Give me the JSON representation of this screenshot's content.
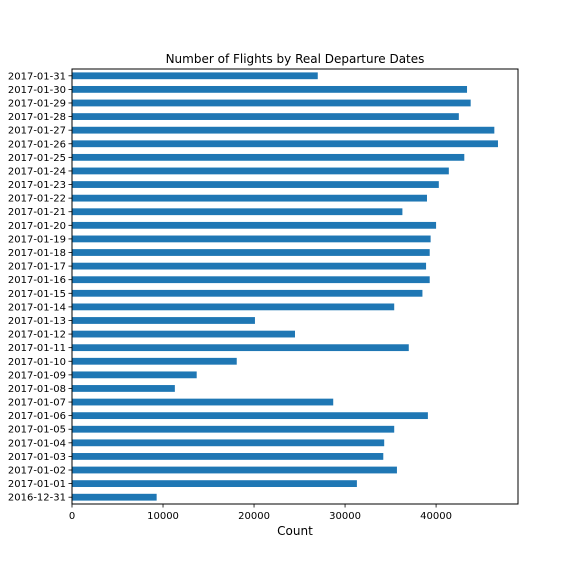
{
  "chart_data": {
    "type": "bar",
    "orientation": "horizontal",
    "title": "Number of Flights by Real Departure Dates",
    "xlabel": "Count",
    "ylabel": "",
    "xlim": [
      0,
      49000
    ],
    "xticks": [
      0,
      10000,
      20000,
      30000,
      40000
    ],
    "grid": false,
    "bar_color": "#1f77b4",
    "categories": [
      "2016-12-31",
      "2017-01-01",
      "2017-01-02",
      "2017-01-03",
      "2017-01-04",
      "2017-01-05",
      "2017-01-06",
      "2017-01-07",
      "2017-01-08",
      "2017-01-09",
      "2017-01-10",
      "2017-01-11",
      "2017-01-12",
      "2017-01-13",
      "2017-01-14",
      "2017-01-15",
      "2017-01-16",
      "2017-01-17",
      "2017-01-18",
      "2017-01-19",
      "2017-01-20",
      "2017-01-21",
      "2017-01-22",
      "2017-01-23",
      "2017-01-24",
      "2017-01-25",
      "2017-01-26",
      "2017-01-27",
      "2017-01-28",
      "2017-01-29",
      "2017-01-30",
      "2017-01-31"
    ],
    "values": [
      9300,
      31300,
      35700,
      34200,
      34300,
      35400,
      39100,
      28700,
      11300,
      13700,
      18100,
      37000,
      24500,
      20100,
      35400,
      38500,
      39300,
      38900,
      39300,
      39400,
      40000,
      36300,
      39000,
      40300,
      41400,
      43100,
      46800,
      46400,
      42500,
      43800,
      43400,
      27000
    ]
  }
}
